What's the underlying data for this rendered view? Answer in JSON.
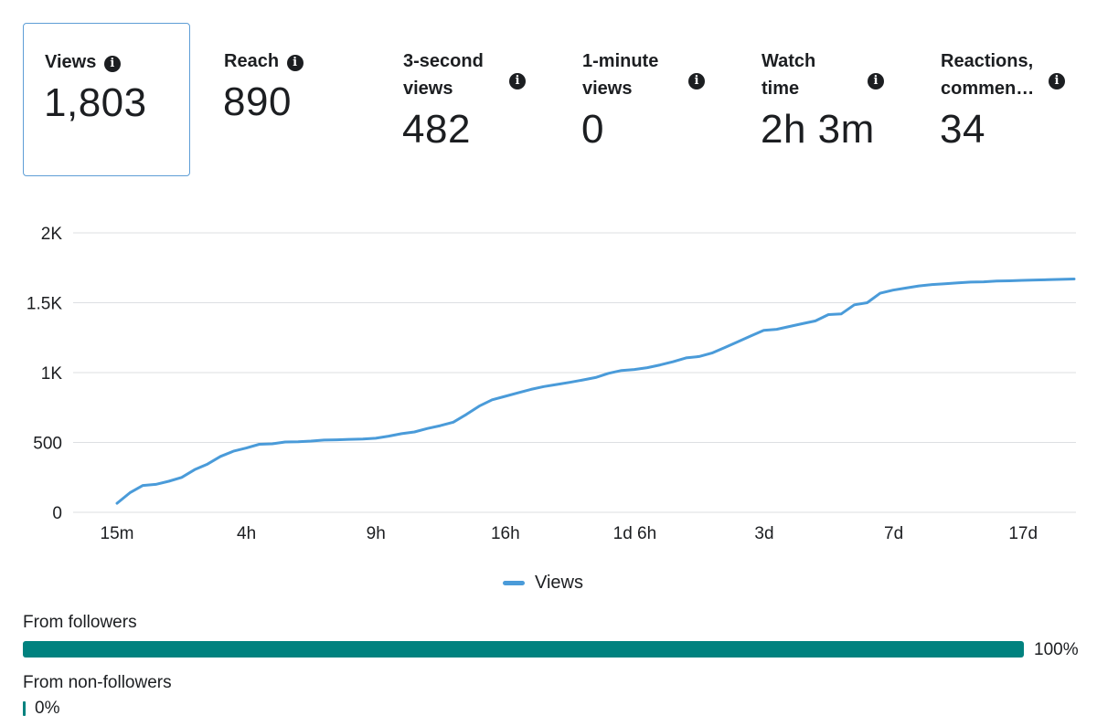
{
  "metrics": [
    {
      "label": "Views",
      "value": "1,803"
    },
    {
      "label": "Reach",
      "value": "890"
    },
    {
      "label": "3-second views",
      "value": "482"
    },
    {
      "label": "1-minute views",
      "value": "0"
    },
    {
      "label": "Watch time",
      "value": "2h 3m"
    },
    {
      "label": "Reactions, commen…",
      "value": "34"
    }
  ],
  "info_icon": "info-icon",
  "chart_data": {
    "type": "line",
    "title": "",
    "xlabel": "",
    "ylabel": "",
    "ylim": [
      0,
      2000
    ],
    "grid": true,
    "y_ticks": [
      0,
      500,
      1000,
      1500,
      2000
    ],
    "y_tick_labels": [
      "0",
      "500",
      "1K",
      "1.5K",
      "2K"
    ],
    "x_tick_labels": [
      "15m",
      "4h",
      "9h",
      "16h",
      "1d 6h",
      "3d",
      "7d",
      "17d"
    ],
    "legend": {
      "position": "bottom",
      "entries": [
        "Views"
      ]
    },
    "series": [
      {
        "name": "Views",
        "color": "#4a9bd9",
        "values": [
          65,
          140,
          192,
          200,
          222,
          250,
          305,
          345,
          400,
          437,
          460,
          487,
          490,
          503,
          505,
          510,
          517,
          519,
          522,
          525,
          530,
          545,
          563,
          575,
          600,
          620,
          645,
          700,
          760,
          805,
          830,
          855,
          880,
          900,
          915,
          930,
          947,
          965,
          995,
          1015,
          1022,
          1035,
          1055,
          1078,
          1105,
          1115,
          1140,
          1180,
          1220,
          1262,
          1302,
          1310,
          1330,
          1350,
          1370,
          1415,
          1420,
          1485,
          1500,
          1568,
          1590,
          1605,
          1620,
          1630,
          1635,
          1642,
          1648,
          1650,
          1655,
          1657,
          1660,
          1663,
          1665,
          1667,
          1670
        ]
      }
    ]
  },
  "audience": {
    "followers": {
      "label": "From followers",
      "percent": 100,
      "percent_label": "100%"
    },
    "non_followers": {
      "label": "From non-followers",
      "percent": 0,
      "percent_label": "0%"
    }
  }
}
